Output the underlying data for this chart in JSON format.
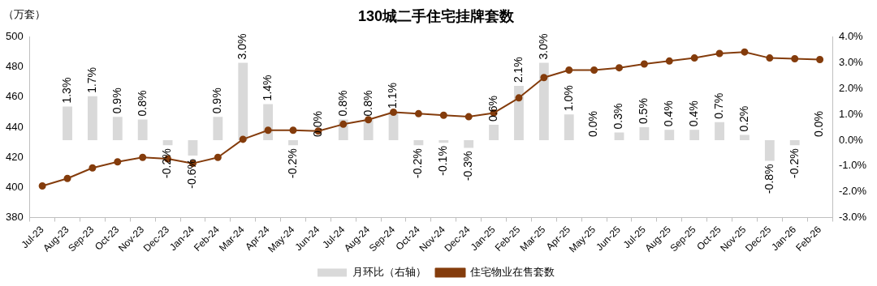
{
  "chart_data": {
    "type": "bar",
    "title": "130城二手住宅挂牌套数",
    "ylabel": "（万套）",
    "categories": [
      "Jul-23",
      "Aug-23",
      "Sep-23",
      "Oct-23",
      "Nov-23",
      "Dec-23",
      "Jan-24",
      "Feb-24",
      "Mar-24",
      "Apr-24",
      "May-24",
      "Jun-24",
      "Jul-24",
      "Aug-24",
      "Sep-24",
      "Oct-24",
      "Nov-24",
      "Dec-24",
      "Jan-25",
      "Feb-25",
      "Mar-25",
      "Apr-25",
      "May-25",
      "Jun-25",
      "Jul-25",
      "Aug-25",
      "Sep-25",
      "Oct-25",
      "Nov-25",
      "Dec-25",
      "Jan-26",
      "Feb-26"
    ],
    "series": [
      {
        "name": "月环比（右轴）",
        "axis": "y2",
        "color": "#d9d9d9",
        "values": [
          null,
          1.3,
          1.7,
          0.9,
          0.8,
          -0.2,
          -0.6,
          0.9,
          3.0,
          1.4,
          -0.2,
          0.0,
          0.8,
          0.8,
          1.1,
          -0.2,
          -0.1,
          -0.3,
          0.6,
          2.1,
          3.0,
          1.0,
          0.0,
          0.3,
          0.5,
          0.4,
          0.4,
          0.7,
          0.2,
          -0.8,
          -0.2,
          0.0
        ],
        "value_labels": [
          null,
          "1.3%",
          "1.7%",
          "0.9%",
          "0.8%",
          "-0.2%",
          "-0.6%",
          "0.9%",
          "3.0%",
          "1.4%",
          "-0.2%",
          "0.0%",
          "0.8%",
          "0.8%",
          "1.1%",
          "-0.2%",
          "-0.1%",
          "-0.3%",
          "0.6%",
          "2.1%",
          "3.0%",
          "1.0%",
          "0.0%",
          "0.3%",
          "0.5%",
          "0.4%",
          "0.4%",
          "0.7%",
          "0.2%",
          "-0.8%",
          "-0.2%",
          "0.0%"
        ]
      },
      {
        "name": "住宅物业在售套数",
        "type": "line",
        "color": "#843c0c",
        "marker": "circle",
        "values": [
          401,
          406,
          413,
          417,
          420,
          419,
          416,
          420,
          432,
          438,
          438,
          437.5,
          442,
          445,
          450,
          449,
          448,
          447,
          449.5,
          459.5,
          473,
          478,
          478,
          479.5,
          482,
          484,
          486,
          489,
          490,
          486,
          485.5,
          485
        ]
      }
    ],
    "ylim": [
      380,
      500
    ],
    "yticks": [
      380,
      400,
      420,
      440,
      460,
      480,
      500
    ],
    "y2lim": [
      -3,
      4
    ],
    "y2ticks": [
      {
        "value": -3,
        "label": "-3.0%"
      },
      {
        "value": -2,
        "label": "-2.0%"
      },
      {
        "value": -1,
        "label": "-1.0%"
      },
      {
        "value": 0,
        "label": "0.0%"
      },
      {
        "value": 1,
        "label": "1.0%"
      },
      {
        "value": 2,
        "label": "2.0%"
      },
      {
        "value": 3,
        "label": "3.0%"
      },
      {
        "value": 4,
        "label": "4.0%"
      }
    ],
    "grid": false,
    "legend": "bottom"
  }
}
